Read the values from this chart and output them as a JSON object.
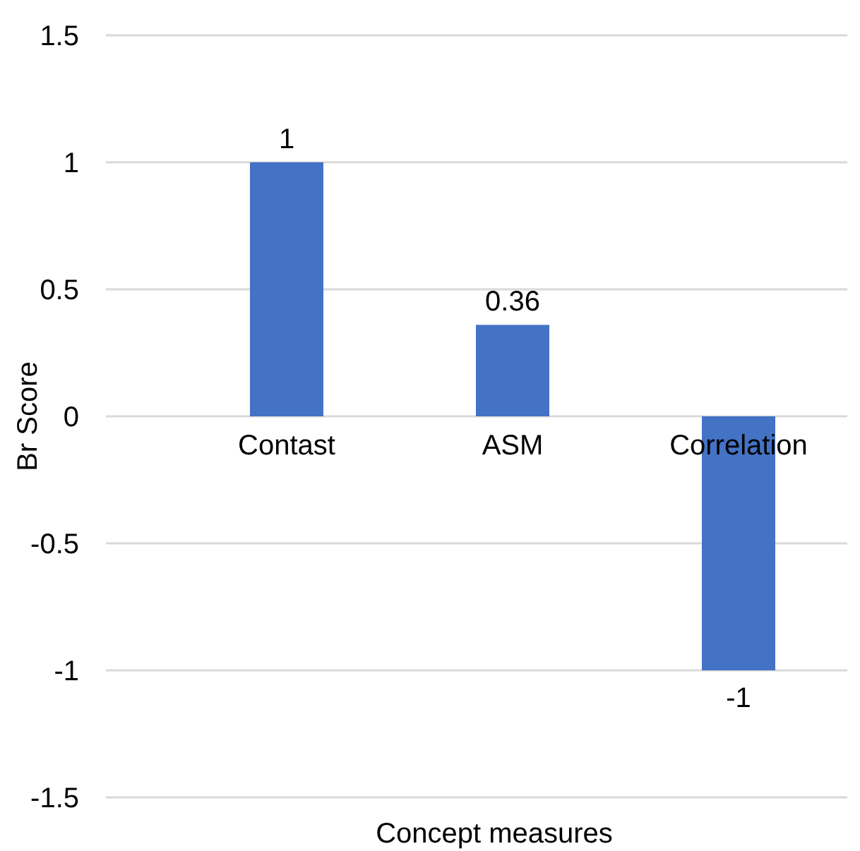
{
  "chart_data": {
    "type": "bar",
    "xlabel": "Concept measures",
    "ylabel": "Br Score",
    "categories": [
      "Contast",
      "ASM",
      "Correlation"
    ],
    "values": [
      1,
      0.36,
      -1
    ],
    "color": "#4472c4",
    "ylim": [
      -1.5,
      1.5
    ],
    "yticks": [
      -1.5,
      -1,
      -0.5,
      0,
      0.5,
      1,
      1.5
    ],
    "grid": "y",
    "data_labels": true
  }
}
